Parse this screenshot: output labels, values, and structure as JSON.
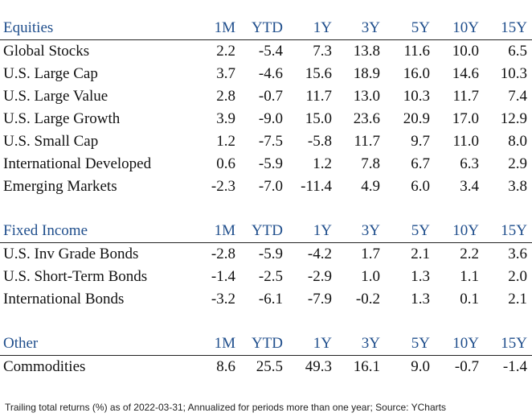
{
  "columns": [
    "1M",
    "YTD",
    "1Y",
    "3Y",
    "5Y",
    "10Y",
    "15Y"
  ],
  "sections": [
    {
      "title": "Equities",
      "rows": [
        {
          "label": "Global Stocks",
          "values": [
            "2.2",
            "-5.4",
            "7.3",
            "13.8",
            "11.6",
            "10.0",
            "6.5"
          ]
        },
        {
          "label": "U.S. Large Cap",
          "values": [
            "3.7",
            "-4.6",
            "15.6",
            "18.9",
            "16.0",
            "14.6",
            "10.3"
          ]
        },
        {
          "label": "U.S. Large Value",
          "values": [
            "2.8",
            "-0.7",
            "11.7",
            "13.0",
            "10.3",
            "11.7",
            "7.4"
          ]
        },
        {
          "label": "U.S. Large Growth",
          "values": [
            "3.9",
            "-9.0",
            "15.0",
            "23.6",
            "20.9",
            "17.0",
            "12.9"
          ]
        },
        {
          "label": "U.S. Small Cap",
          "values": [
            "1.2",
            "-7.5",
            "-5.8",
            "11.7",
            "9.7",
            "11.0",
            "8.0"
          ]
        },
        {
          "label": "International Developed",
          "values": [
            "0.6",
            "-5.9",
            "1.2",
            "7.8",
            "6.7",
            "6.3",
            "2.9"
          ]
        },
        {
          "label": "Emerging Markets",
          "values": [
            "-2.3",
            "-7.0",
            "-11.4",
            "4.9",
            "6.0",
            "3.4",
            "3.8"
          ]
        }
      ]
    },
    {
      "title": "Fixed Income",
      "rows": [
        {
          "label": "U.S. Inv Grade Bonds",
          "values": [
            "-2.8",
            "-5.9",
            "-4.2",
            "1.7",
            "2.1",
            "2.2",
            "3.6"
          ]
        },
        {
          "label": "U.S. Short-Term Bonds",
          "values": [
            "-1.4",
            "-2.5",
            "-2.9",
            "1.0",
            "1.3",
            "1.1",
            "2.0"
          ]
        },
        {
          "label": "International Bonds",
          "values": [
            "-3.2",
            "-6.1",
            "-7.9",
            "-0.2",
            "1.3",
            "0.1",
            "2.1"
          ]
        }
      ]
    },
    {
      "title": "Other",
      "rows": [
        {
          "label": "Commodities",
          "values": [
            "8.6",
            "25.5",
            "49.3",
            "16.1",
            "9.0",
            "-0.7",
            "-1.4"
          ]
        }
      ]
    }
  ],
  "footnote": "Trailing total returns (%) as of 2022-03-31; Annualized for periods more than one year; Source: YCharts",
  "colors": {
    "header_text": "#1f4e8c",
    "body_text": "#111111"
  }
}
